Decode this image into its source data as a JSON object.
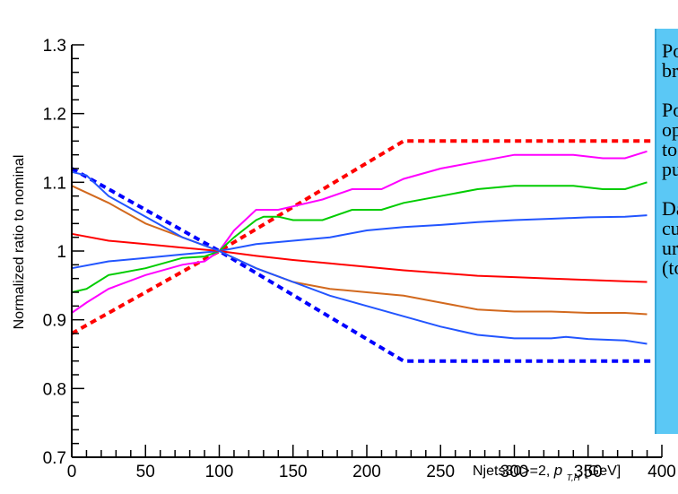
{
  "chart_data": {
    "type": "line",
    "xlabel_main": "Njets30>=2, ",
    "xlabel_var": "p",
    "xlabel_sub": "T,H",
    "xlabel_unit": " [GeV]",
    "ylabel": "Normalized ratio to nominal",
    "xlim": [
      0,
      400
    ],
    "ylim": [
      0.7,
      1.3
    ],
    "x_ticks": [
      "0",
      "50",
      "100",
      "150",
      "200",
      "250",
      "300",
      "350",
      "400"
    ],
    "y_ticks": [
      "0.7",
      "0.8",
      "0.9",
      "1",
      "1.1",
      "1.2",
      "1.3"
    ],
    "series": [
      {
        "color": "#ff0000",
        "style": "dashed",
        "x": [
          0,
          100,
          225,
          400
        ],
        "y": [
          0.88,
          1.0,
          1.16,
          1.16
        ]
      },
      {
        "color": "#0000ff",
        "style": "dashed",
        "x": [
          0,
          100,
          225,
          400
        ],
        "y": [
          1.12,
          1.0,
          0.84,
          0.84
        ]
      },
      {
        "color": "#ff00ff",
        "style": "solid",
        "x": [
          0,
          10,
          25,
          50,
          75,
          90,
          100,
          110,
          125,
          130,
          140,
          150,
          170,
          190,
          200,
          210,
          225,
          250,
          275,
          300,
          320,
          340,
          360,
          375,
          390
        ],
        "y": [
          0.91,
          0.925,
          0.945,
          0.965,
          0.98,
          0.985,
          1.0,
          1.03,
          1.06,
          1.06,
          1.06,
          1.065,
          1.075,
          1.09,
          1.09,
          1.09,
          1.105,
          1.12,
          1.13,
          1.14,
          1.14,
          1.14,
          1.135,
          1.135,
          1.145
        ]
      },
      {
        "color": "#00cc00",
        "style": "solid",
        "x": [
          0,
          10,
          25,
          50,
          75,
          90,
          100,
          110,
          125,
          130,
          140,
          150,
          170,
          190,
          200,
          210,
          225,
          250,
          275,
          300,
          320,
          340,
          360,
          375,
          390
        ],
        "y": [
          0.94,
          0.945,
          0.965,
          0.975,
          0.99,
          0.992,
          1.0,
          1.02,
          1.045,
          1.05,
          1.05,
          1.045,
          1.045,
          1.06,
          1.06,
          1.06,
          1.07,
          1.08,
          1.09,
          1.095,
          1.095,
          1.095,
          1.09,
          1.09,
          1.1
        ]
      },
      {
        "color": "#2255ff",
        "style": "solid",
        "x": [
          0,
          25,
          50,
          75,
          100,
          125,
          150,
          175,
          200,
          225,
          250,
          275,
          300,
          325,
          350,
          375,
          390
        ],
        "y": [
          0.975,
          0.985,
          0.99,
          0.995,
          1.0,
          1.01,
          1.015,
          1.02,
          1.03,
          1.035,
          1.038,
          1.042,
          1.045,
          1.047,
          1.049,
          1.05,
          1.052
        ]
      },
      {
        "color": "#ff0000",
        "style": "solid",
        "x": [
          0,
          25,
          50,
          75,
          100,
          125,
          150,
          175,
          200,
          225,
          250,
          275,
          300,
          325,
          350,
          375,
          390
        ],
        "y": [
          1.025,
          1.015,
          1.01,
          1.005,
          1.0,
          0.993,
          0.987,
          0.982,
          0.977,
          0.972,
          0.968,
          0.964,
          0.962,
          0.96,
          0.958,
          0.956,
          0.955
        ]
      },
      {
        "color": "#d2691e",
        "style": "solid",
        "x": [
          0,
          25,
          50,
          75,
          100,
          125,
          150,
          175,
          200,
          225,
          250,
          275,
          300,
          325,
          350,
          375,
          390
        ],
        "y": [
          1.095,
          1.07,
          1.04,
          1.02,
          1.0,
          0.975,
          0.955,
          0.945,
          0.94,
          0.935,
          0.925,
          0.915,
          0.912,
          0.912,
          0.91,
          0.91,
          0.908
        ]
      },
      {
        "color": "#2255ff",
        "style": "solid",
        "x": [
          0,
          10,
          25,
          50,
          75,
          100,
          125,
          150,
          175,
          200,
          225,
          250,
          275,
          300,
          325,
          335,
          350,
          375,
          390
        ],
        "y": [
          1.115,
          1.11,
          1.08,
          1.05,
          1.02,
          1.0,
          0.975,
          0.955,
          0.935,
          0.92,
          0.905,
          0.89,
          0.878,
          0.873,
          0.873,
          0.875,
          0.872,
          0.87,
          0.865
        ]
      }
    ]
  },
  "legend_box": {
    "lines": [
      "Po",
      "br",
      "",
      "Po",
      "op",
      "to",
      "pu",
      "",
      "Da",
      "cu",
      "ur",
      "(to"
    ]
  }
}
